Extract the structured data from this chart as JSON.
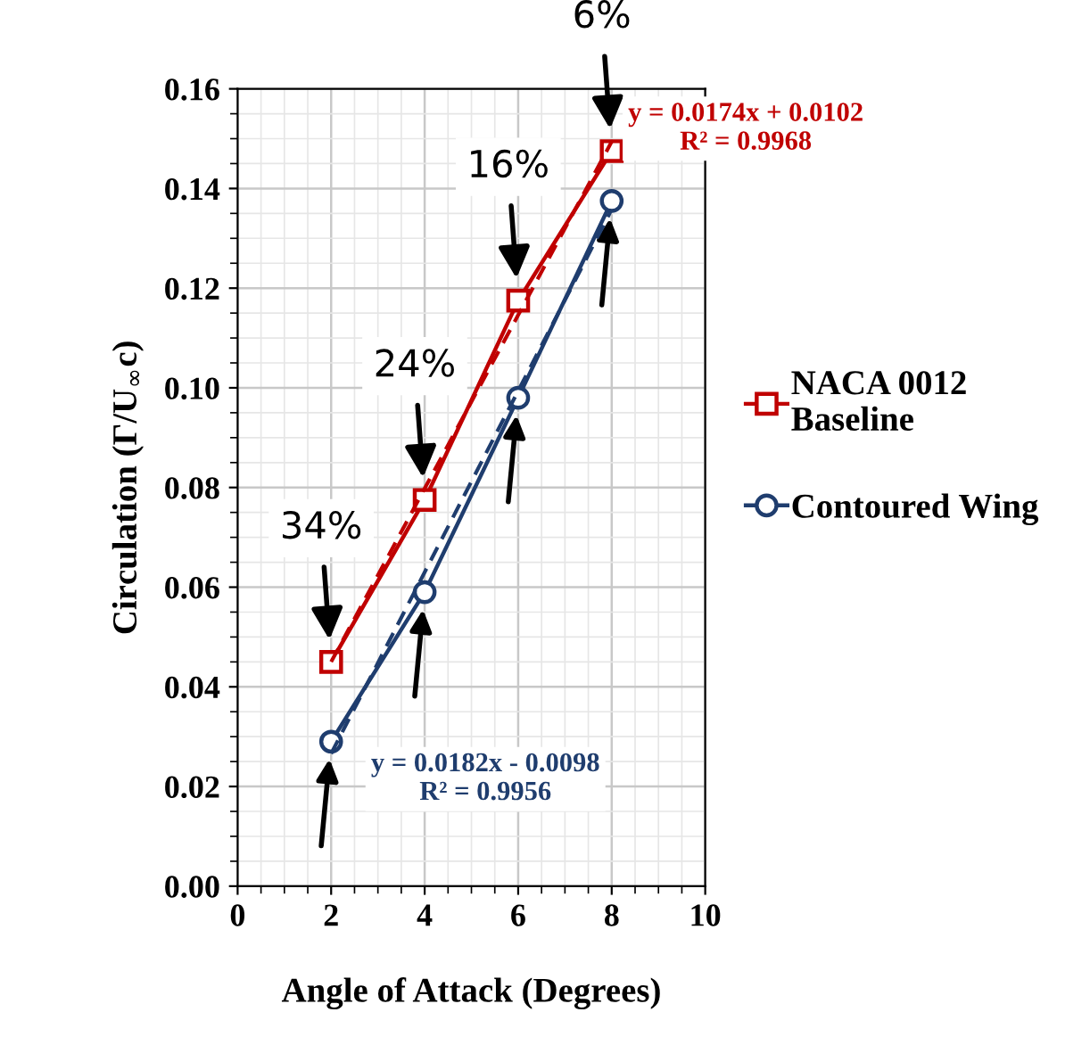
{
  "chart_data": {
    "type": "line",
    "xlabel": "Angle of Attack (Degrees)",
    "ylabel": "Circulation (Γ/U$_{∞}$c)",
    "x": [
      2,
      4,
      6,
      8
    ],
    "series": [
      {
        "name": "NACA 0012\nBaseline",
        "color": "#c00000",
        "values": [
          0.045,
          0.0775,
          0.1175,
          0.1475
        ],
        "marker": "square",
        "line_style": "solid"
      },
      {
        "name": "Contoured Wing",
        "color": "#1f3d6e",
        "values": [
          0.029,
          0.059,
          0.098,
          0.1375
        ],
        "marker": "circle",
        "line_style": "solid"
      },
      {
        "type": "line",
        "color": "#c00000",
        "values": [
          0.045,
          0.0798,
          0.1146,
          0.1494
        ],
        "marker": "none",
        "line_style": "dashed"
      },
      {
        "type": "line",
        "color": "#1f3d6e",
        "values": [
          0.0266,
          0.063,
          0.0994,
          0.1358
        ],
        "marker": "none",
        "line_style": "dashed"
      }
    ],
    "xlim": [
      0,
      10
    ],
    "xticks": [
      0,
      2,
      4,
      6,
      8,
      10
    ],
    "ylim": [
      0,
      0.16
    ],
    "yticks": [
      {
        "value": 0,
        "label": "0.00"
      },
      {
        "value": 0.02,
        "label": "0.02"
      },
      {
        "value": 0.04,
        "label": "0.04"
      },
      {
        "value": 0.06,
        "label": "0.06"
      },
      {
        "value": 0.08,
        "label": "0.08"
      },
      {
        "value": 0.1,
        "label": "0.10"
      },
      {
        "value": 0.12,
        "label": "0.12"
      },
      {
        "value": 0.14,
        "label": "0.14"
      },
      {
        "value": 0.16,
        "label": "0.16"
      }
    ],
    "grid": true,
    "legend": "right",
    "annotations": [
      "34%",
      "24%",
      "16%",
      "6%",
      "y = 0.0174x + 0.0102\nR² = 0.9968",
      "y = 0.0182x - 0.0098\nR² = 0.9956"
    ]
  }
}
